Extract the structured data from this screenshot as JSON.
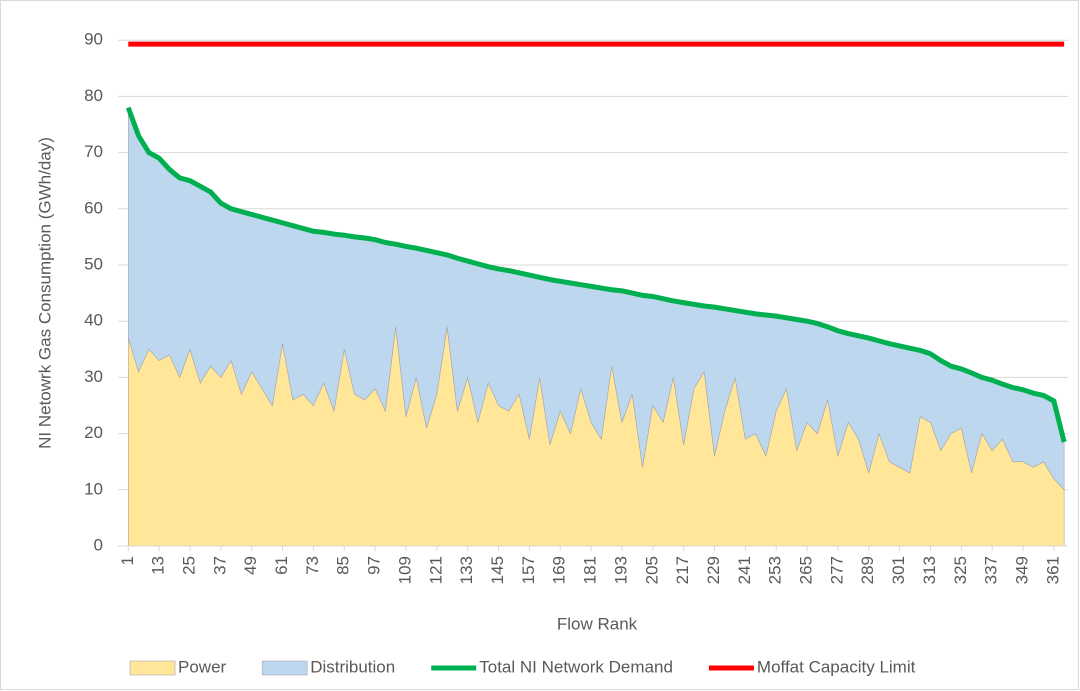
{
  "chart_data": {
    "type": "stacked-area-line",
    "xlabel": "Flow Rank",
    "ylabel": "NI Netowrk Gas Consumption (GWh/day)",
    "x": [
      1,
      5,
      9,
      13,
      17,
      21,
      25,
      29,
      33,
      37,
      41,
      45,
      49,
      53,
      57,
      61,
      65,
      69,
      73,
      77,
      81,
      85,
      89,
      93,
      97,
      101,
      105,
      109,
      113,
      117,
      121,
      125,
      129,
      133,
      137,
      141,
      145,
      149,
      153,
      157,
      161,
      165,
      169,
      173,
      177,
      181,
      185,
      189,
      193,
      197,
      201,
      205,
      209,
      213,
      217,
      221,
      225,
      229,
      233,
      237,
      241,
      245,
      249,
      253,
      257,
      261,
      265,
      269,
      273,
      277,
      281,
      285,
      289,
      293,
      297,
      301,
      305,
      309,
      313,
      317,
      321,
      325,
      329,
      333,
      337,
      341,
      345,
      349,
      353,
      357,
      361,
      365
    ],
    "xlim": [
      -3,
      366.5
    ],
    "xticks": [
      1,
      13,
      25,
      37,
      49,
      61,
      73,
      85,
      97,
      109,
      121,
      133,
      145,
      157,
      169,
      181,
      193,
      205,
      217,
      229,
      241,
      253,
      265,
      277,
      289,
      301,
      313,
      325,
      337,
      349,
      361
    ],
    "ylim": [
      0,
      90
    ],
    "yticks": [
      0,
      10,
      20,
      30,
      40,
      50,
      60,
      70,
      80,
      90
    ],
    "grid": true,
    "legend": "bottom",
    "series": [
      {
        "name": "Power",
        "kind": "area",
        "color": "#FFE699",
        "values": [
          37,
          31,
          35,
          33,
          34,
          30,
          35,
          29,
          32,
          30,
          33,
          27,
          31,
          28,
          25,
          36,
          26,
          27,
          25,
          29,
          24,
          35,
          27,
          26,
          28,
          24,
          39,
          23,
          30,
          21,
          27,
          39,
          24,
          30,
          22,
          29,
          25,
          24,
          27,
          19,
          30,
          18,
          24,
          20,
          28,
          22,
          19,
          32,
          22,
          27,
          14,
          25,
          22,
          30,
          18,
          28,
          31,
          16,
          24,
          30,
          19,
          20,
          16,
          24,
          28,
          17,
          22,
          20,
          26,
          16,
          22,
          19,
          13,
          20,
          15,
          14,
          13,
          23,
          22,
          17,
          20,
          21,
          13,
          20,
          17,
          19,
          15,
          15,
          14,
          15,
          12,
          10
        ]
      },
      {
        "name": "Distribution",
        "kind": "area",
        "color": "#BDD7EE",
        "values": [
          41,
          42,
          35,
          36,
          33,
          35.5,
          30,
          35,
          31,
          31,
          27,
          32.5,
          28,
          30.5,
          33,
          21.5,
          31,
          29.5,
          31,
          26.8,
          31.5,
          20.3,
          28,
          28.8,
          26.5,
          30,
          14.7,
          30.3,
          23,
          31.6,
          25.2,
          12.8,
          27.2,
          20.7,
          28.2,
          20.7,
          24.3,
          25,
          21.6,
          29.2,
          17.8,
          29.4,
          23.1,
          26.8,
          18.5,
          24.2,
          26.9,
          13.6,
          23.4,
          18,
          30.6,
          19.4,
          22,
          13.6,
          25.3,
          15,
          11.7,
          26.5,
          18.2,
          11.9,
          22.6,
          21.3,
          25.1,
          16.9,
          12.6,
          23.3,
          18,
          19.6,
          13,
          22.3,
          15.8,
          18.4,
          24,
          16.5,
          21,
          21.6,
          22.2,
          11.8,
          12.2,
          16,
          12,
          10.5,
          17.8,
          10,
          12.5,
          9.8,
          13.2,
          12.8,
          13.2,
          11.8,
          13.8,
          8.5
        ]
      },
      {
        "name": "Total NI Network Demand",
        "kind": "line",
        "color": "#00B050",
        "values": [
          78,
          73,
          70,
          69,
          67,
          65.5,
          65,
          64,
          63,
          61,
          60,
          59.5,
          59,
          58.5,
          58,
          57.5,
          57,
          56.5,
          56,
          55.8,
          55.5,
          55.3,
          55,
          54.8,
          54.5,
          54,
          53.7,
          53.3,
          53,
          52.6,
          52.2,
          51.8,
          51.2,
          50.7,
          50.2,
          49.7,
          49.3,
          49,
          48.6,
          48.2,
          47.8,
          47.4,
          47.1,
          46.8,
          46.5,
          46.2,
          45.9,
          45.6,
          45.4,
          45,
          44.6,
          44.4,
          44,
          43.6,
          43.3,
          43,
          42.7,
          42.5,
          42.2,
          41.9,
          41.6,
          41.3,
          41.1,
          40.9,
          40.6,
          40.3,
          40,
          39.6,
          39,
          38.3,
          37.8,
          37.4,
          37,
          36.5,
          36,
          35.6,
          35.2,
          34.8,
          34.2,
          33,
          32,
          31.5,
          30.8,
          30,
          29.5,
          28.8,
          28.2,
          27.8,
          27.2,
          26.8,
          25.8,
          18.5
        ]
      },
      {
        "name": "Moffat Capacity Limit",
        "kind": "line",
        "color": "#FF0000",
        "x": [
          1,
          365
        ],
        "values": [
          89.3,
          89.3
        ]
      }
    ]
  }
}
